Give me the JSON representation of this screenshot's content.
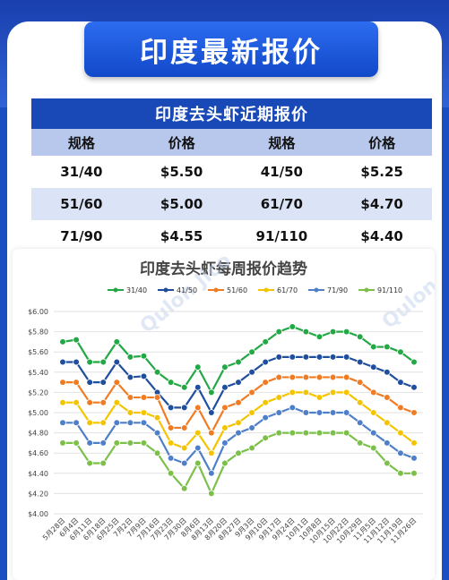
{
  "banner": {
    "title": "印度最新报价"
  },
  "table": {
    "title": "印度去头虾近期报价",
    "headers": [
      "规格",
      "价格",
      "规格",
      "价格"
    ],
    "rows": [
      [
        "31/40",
        "$5.50",
        "41/50",
        "$5.25"
      ],
      [
        "51/60",
        "$5.00",
        "61/70",
        "$4.70"
      ],
      [
        "71/90",
        "$4.55",
        "91/110",
        "$4.40"
      ]
    ]
  },
  "watermark": "Qulon Jico",
  "chart_data": {
    "type": "line",
    "title": "印度去头虾每周报价趋势",
    "xlabel": "",
    "ylabel": "",
    "ylim": [
      4.0,
      6.0
    ],
    "y_ticks": [
      "$4.00",
      "$4.20",
      "$4.40",
      "$4.60",
      "$4.80",
      "$5.00",
      "$5.20",
      "$5.40",
      "$5.60",
      "$5.80",
      "$6.00"
    ],
    "legend_position": "top",
    "grid": true,
    "categories": [
      "5月28日",
      "6月4日",
      "6月11日",
      "6月18日",
      "6月25日",
      "7月2日",
      "7月9日",
      "7月16日",
      "7月23日",
      "7月30日",
      "8月6日",
      "8月13日",
      "8月20日",
      "8月27日",
      "9月3日",
      "9月10日",
      "9月17日",
      "9月24日",
      "10月1日",
      "10月8日",
      "10月15日",
      "10月22日",
      "10月29日",
      "11月5日",
      "11月12日",
      "11月19日",
      "11月26日"
    ],
    "series": [
      {
        "name": "31/40",
        "color": "#22a845",
        "values": [
          5.7,
          5.72,
          5.5,
          5.5,
          5.7,
          5.55,
          5.56,
          5.4,
          5.3,
          5.25,
          5.45,
          5.2,
          5.45,
          5.5,
          5.6,
          5.7,
          5.8,
          5.85,
          5.8,
          5.75,
          5.8,
          5.8,
          5.75,
          5.65,
          5.65,
          5.6,
          5.5
        ]
      },
      {
        "name": "41/50",
        "color": "#1f4e9e",
        "values": [
          5.5,
          5.5,
          5.3,
          5.3,
          5.5,
          5.35,
          5.36,
          5.2,
          5.05,
          5.05,
          5.25,
          5.0,
          5.25,
          5.3,
          5.4,
          5.5,
          5.55,
          5.55,
          5.55,
          5.55,
          5.55,
          5.55,
          5.5,
          5.45,
          5.4,
          5.3,
          5.25
        ]
      },
      {
        "name": "51/60",
        "color": "#f07b22",
        "values": [
          5.3,
          5.3,
          5.1,
          5.1,
          5.3,
          5.15,
          5.15,
          5.15,
          4.85,
          4.85,
          5.05,
          4.8,
          5.05,
          5.1,
          5.2,
          5.3,
          5.35,
          5.35,
          5.35,
          5.35,
          5.35,
          5.35,
          5.3,
          5.2,
          5.15,
          5.05,
          5.0
        ]
      },
      {
        "name": "61/70",
        "color": "#f5c400",
        "values": [
          5.1,
          5.1,
          4.9,
          4.9,
          5.1,
          5.0,
          5.0,
          4.95,
          4.7,
          4.65,
          4.8,
          4.6,
          4.85,
          4.9,
          5.0,
          5.1,
          5.15,
          5.2,
          5.2,
          5.15,
          5.2,
          5.2,
          5.1,
          5.0,
          4.9,
          4.8,
          4.7
        ]
      },
      {
        "name": "71/90",
        "color": "#4f7fc8",
        "values": [
          4.9,
          4.9,
          4.7,
          4.7,
          4.9,
          4.9,
          4.9,
          4.8,
          4.55,
          4.5,
          4.65,
          4.4,
          4.7,
          4.8,
          4.85,
          4.95,
          5.0,
          5.05,
          5.0,
          5.0,
          5.0,
          5.0,
          4.9,
          4.8,
          4.7,
          4.6,
          4.55
        ]
      },
      {
        "name": "91/110",
        "color": "#7cc04a",
        "values": [
          4.7,
          4.7,
          4.5,
          4.5,
          4.7,
          4.7,
          4.7,
          4.6,
          4.4,
          4.25,
          4.5,
          4.2,
          4.5,
          4.6,
          4.65,
          4.75,
          4.8,
          4.8,
          4.8,
          4.8,
          4.8,
          4.8,
          4.7,
          4.65,
          4.5,
          4.4,
          4.4
        ]
      }
    ]
  }
}
